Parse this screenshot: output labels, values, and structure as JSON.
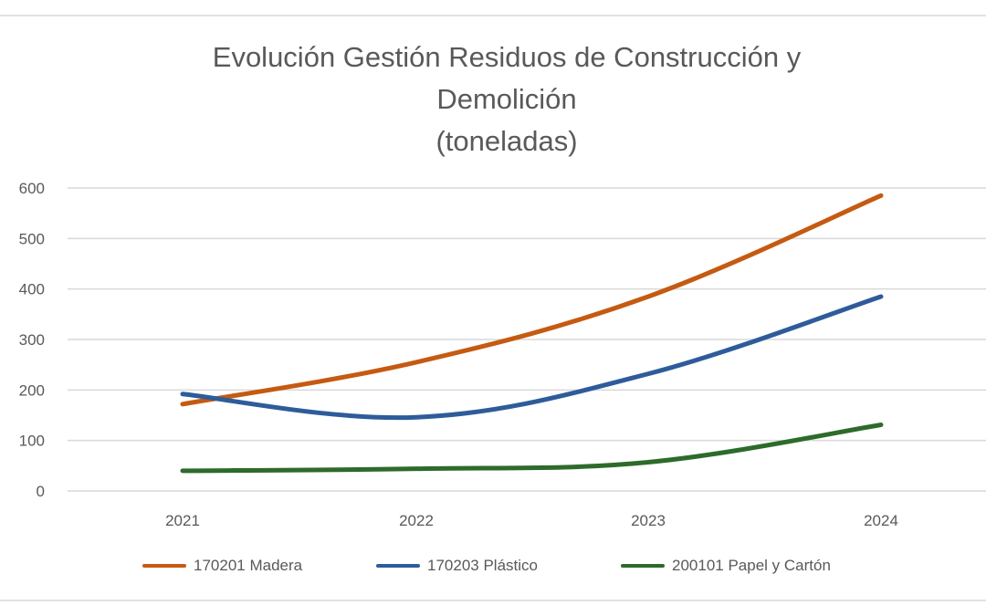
{
  "chart_data": {
    "type": "line",
    "title_lines": [
      "Evolución Gestión Residuos de Construcción y",
      "Demolición",
      "(toneladas)"
    ],
    "xlabel": "",
    "ylabel": "",
    "categories": [
      "2021",
      "2022",
      "2023",
      "2024"
    ],
    "ylim": [
      0,
      600
    ],
    "yticks": [
      "0",
      "100",
      "200",
      "300",
      "400",
      "500",
      "600"
    ],
    "grid": true,
    "legend_position": "bottom",
    "series": [
      {
        "name": "170201 Madera",
        "color": "#C55A11",
        "values": [
          172,
          255,
          385,
          585
        ]
      },
      {
        "name": "170203 Plástico",
        "color": "#2E5C9A",
        "values": [
          192,
          146,
          232,
          385
        ]
      },
      {
        "name": "200101 Papel y Cartón",
        "color": "#2D6B2A",
        "values": [
          40,
          44,
          57,
          131
        ]
      }
    ]
  }
}
